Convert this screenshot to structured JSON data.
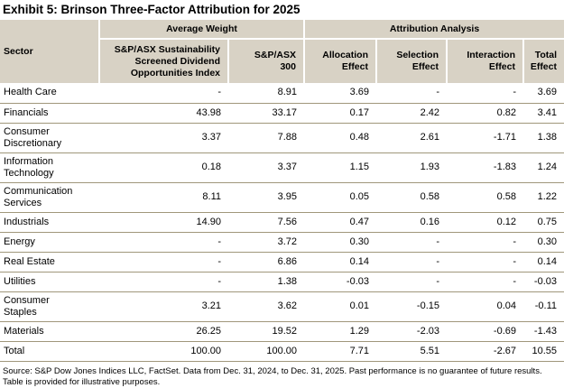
{
  "title": "Exhibit 5: Brinson Three-Factor Attribution for 2025",
  "table": {
    "group_headers": [
      {
        "label": "Average Weight",
        "span": 2
      },
      {
        "label": "Attribution Analysis",
        "span": 4
      }
    ],
    "columns": [
      {
        "label": "Sector",
        "align": "left"
      },
      {
        "label": "S&P/ASX Sustainability Screened Dividend Opportunities Index",
        "align": "right"
      },
      {
        "label": "S&P/ASX 300",
        "align": "right"
      },
      {
        "label": "Allocation Effect",
        "align": "right"
      },
      {
        "label": "Selection Effect",
        "align": "right"
      },
      {
        "label": "Interaction Effect",
        "align": "right"
      },
      {
        "label": "Total Effect",
        "align": "right"
      }
    ],
    "rows": [
      [
        "Health Care",
        "-",
        "8.91",
        "3.69",
        "-",
        "-",
        "3.69"
      ],
      [
        "Financials",
        "43.98",
        "33.17",
        "0.17",
        "2.42",
        "0.82",
        "3.41"
      ],
      [
        "Consumer Discretionary",
        "3.37",
        "7.88",
        "0.48",
        "2.61",
        "-1.71",
        "1.38"
      ],
      [
        "Information Technology",
        "0.18",
        "3.37",
        "1.15",
        "1.93",
        "-1.83",
        "1.24"
      ],
      [
        "Communication Services",
        "8.11",
        "3.95",
        "0.05",
        "0.58",
        "0.58",
        "1.22"
      ],
      [
        "Industrials",
        "14.90",
        "7.56",
        "0.47",
        "0.16",
        "0.12",
        "0.75"
      ],
      [
        "Energy",
        "-",
        "3.72",
        "0.30",
        "-",
        "-",
        "0.30"
      ],
      [
        "Real Estate",
        "-",
        "6.86",
        "0.14",
        "-",
        "-",
        "0.14"
      ],
      [
        "Utilities",
        "-",
        "1.38",
        "-0.03",
        "-",
        "-",
        "-0.03"
      ],
      [
        "Consumer Staples",
        "3.21",
        "3.62",
        "0.01",
        "-0.15",
        "0.04",
        "-0.11"
      ],
      [
        "Materials",
        "26.25",
        "19.52",
        "1.29",
        "-2.03",
        "-0.69",
        "-1.43"
      ],
      [
        "Total",
        "100.00",
        "100.00",
        "7.71",
        "5.51",
        "-2.67",
        "10.55"
      ]
    ]
  },
  "source_note": "Source: S&P Dow Jones Indices LLC, FactSet. Data from Dec. 31, 2024, to Dec. 31, 2025.  Past performance is no guarantee of future results. Table is provided for illustrative purposes.",
  "colors": {
    "header_bg": "#d8d2c5",
    "row_border": "#a0977b",
    "text": "#000000",
    "page_bg": "#ffffff"
  }
}
